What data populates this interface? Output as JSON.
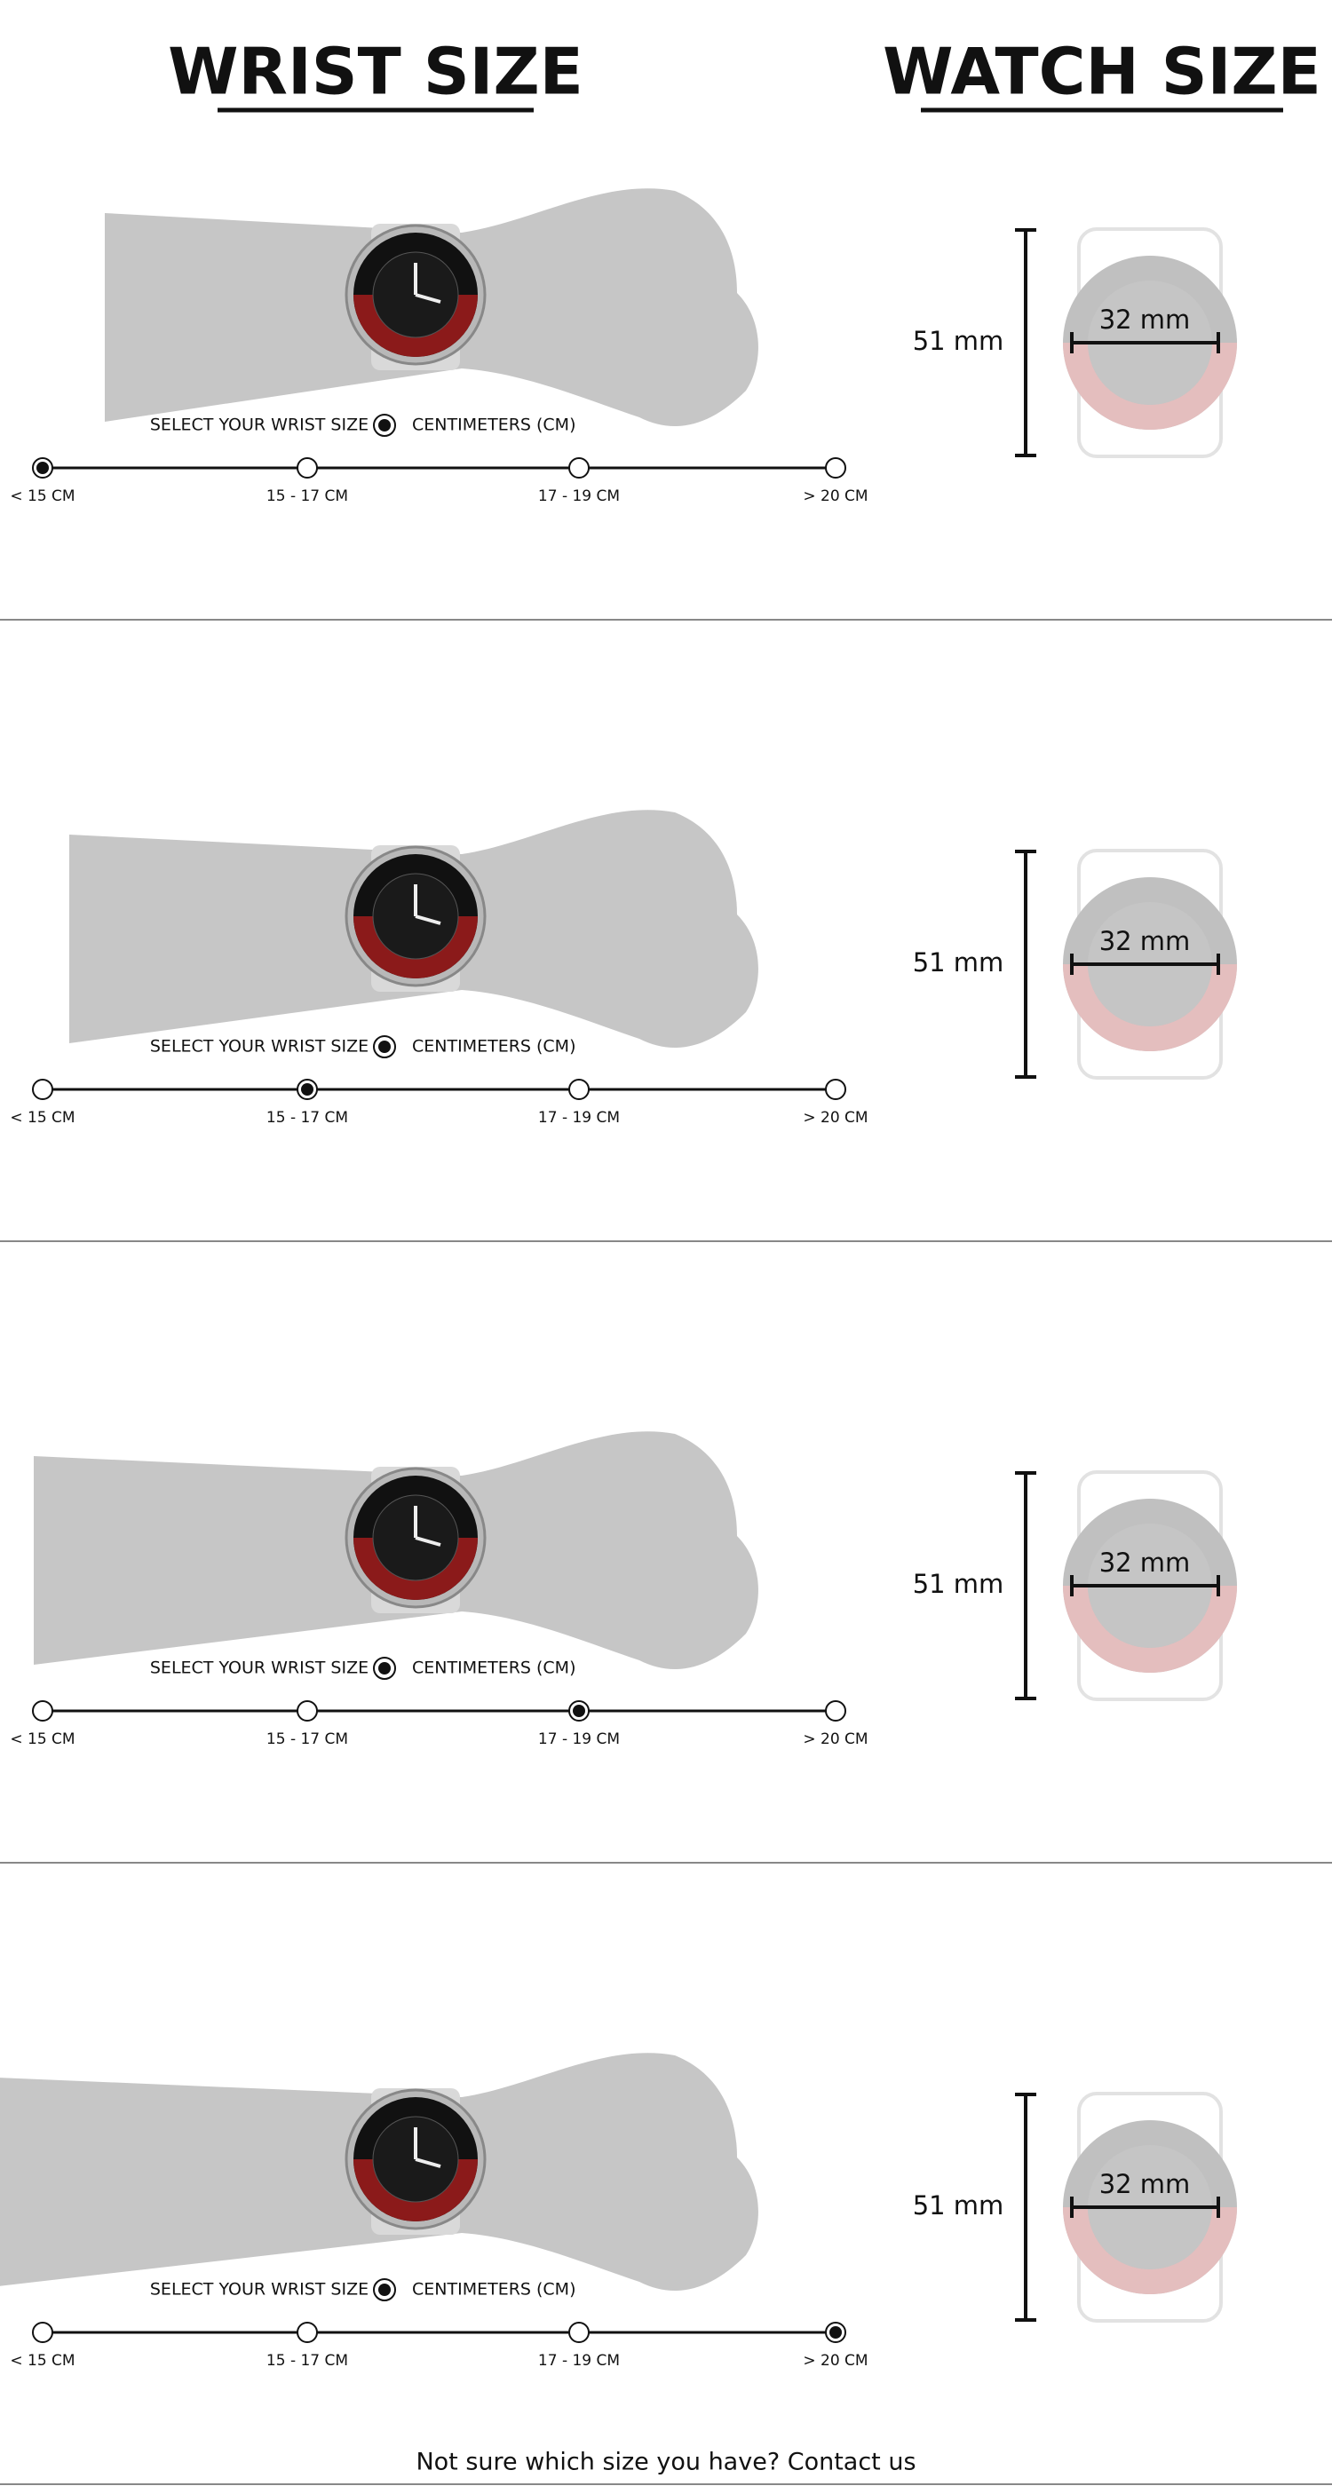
{
  "header": {
    "wrist_title": "WRIST SIZE",
    "watch_title": "WATCH SIZE"
  },
  "panels": [
    {
      "select_label": "SELECT YOUR WRIST SIZE",
      "unit_label": "CENTIMETERS (CM)",
      "options": [
        "< 15 CM",
        "15 - 17 CM",
        "17 - 19 CM",
        "> 20 CM"
      ],
      "selected": 0,
      "watch_height": "51 mm",
      "watch_width": "32 mm"
    },
    {
      "select_label": "SELECT YOUR WRIST SIZE",
      "unit_label": "CENTIMETERS (CM)",
      "options": [
        "< 15 CM",
        "15 - 17 CM",
        "17 - 19 CM",
        "> 20 CM"
      ],
      "selected": 1,
      "watch_height": "51 mm",
      "watch_width": "32 mm"
    },
    {
      "select_label": "SELECT YOUR WRIST SIZE",
      "unit_label": "CENTIMETERS (CM)",
      "options": [
        "< 15 CM",
        "15 - 17 CM",
        "17 - 19 CM",
        "> 20 CM"
      ],
      "selected": 2,
      "watch_height": "51 mm",
      "watch_width": "32 mm"
    },
    {
      "select_label": "SELECT YOUR WRIST SIZE",
      "unit_label": "CENTIMETERS (CM)",
      "options": [
        "< 15 CM",
        "15 - 17 CM",
        "17 - 19 CM",
        "> 20 CM"
      ],
      "selected": 3,
      "watch_height": "51 mm",
      "watch_width": "32 mm"
    }
  ],
  "footer": {
    "text": "Not sure which size you have? Contact us"
  }
}
